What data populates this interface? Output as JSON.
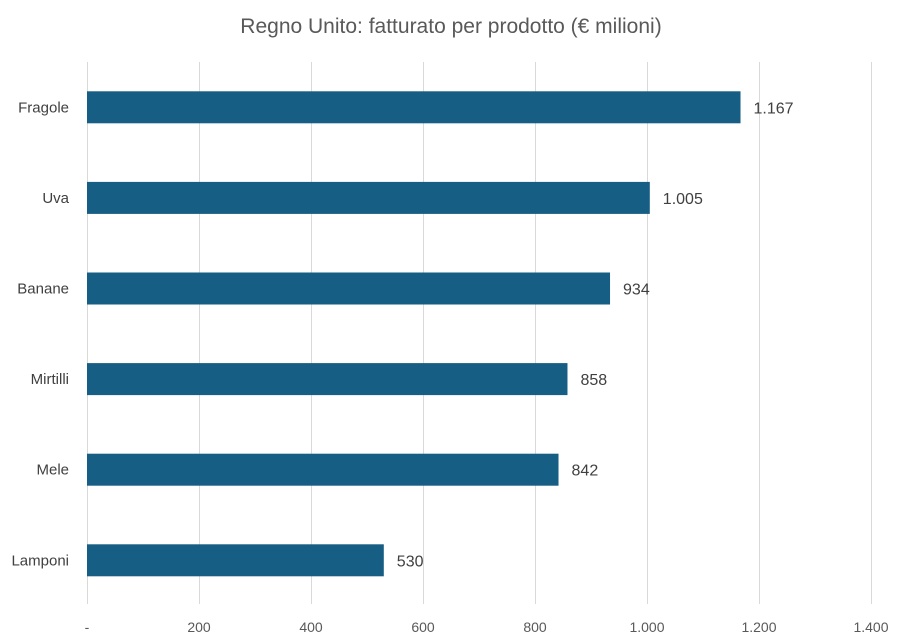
{
  "chart_data": {
    "type": "bar",
    "orientation": "horizontal",
    "title": "Regno Unito: fatturato per prodotto (€ milioni)",
    "xlabel": "",
    "ylabel": "",
    "categories": [
      "Fragole",
      "Uva",
      "Banane",
      "Mirtilli",
      "Mele",
      "Lamponi"
    ],
    "values": [
      1167,
      1005,
      934,
      858,
      842,
      530
    ],
    "data_labels": [
      "1.167",
      "1.005",
      "934",
      "858",
      "842",
      "530"
    ],
    "xlim": [
      0,
      1400
    ],
    "x_ticks": [
      0,
      200,
      400,
      600,
      800,
      1000,
      1200,
      1400
    ],
    "x_tick_labels": [
      "-",
      "200",
      "400",
      "600",
      "800",
      "1.000",
      "1.200",
      "1.400"
    ],
    "grid": "vertical",
    "legend": "none",
    "bar_color": "#165e83"
  }
}
